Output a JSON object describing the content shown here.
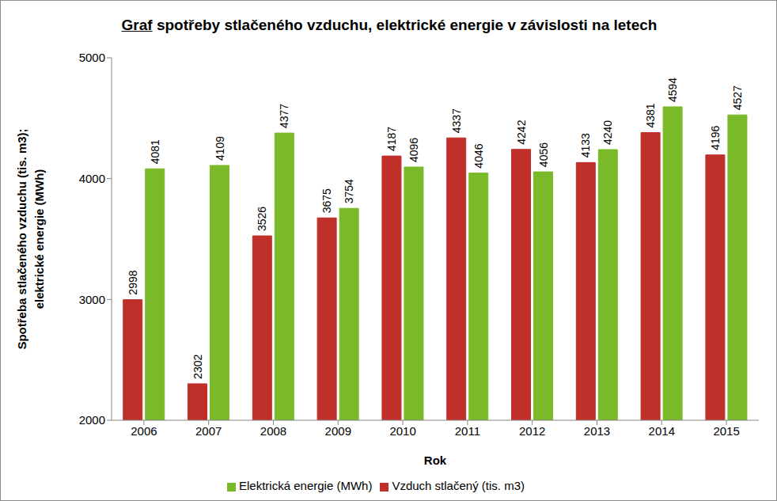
{
  "chart_data": {
    "type": "bar",
    "title": "Graf spotřeby stlačeného vzduchu, elektrické energie v závislosti na letech",
    "categories": [
      "2006",
      "2007",
      "2008",
      "2009",
      "2010",
      "2011",
      "2012",
      "2013",
      "2014",
      "2015"
    ],
    "series": [
      {
        "name": "Vzduch stlačený (tis. m3)",
        "color": "#c0302b",
        "values": [
          2998,
          2302,
          3526,
          3675,
          4187,
          4337,
          4242,
          4133,
          4381,
          4196
        ]
      },
      {
        "name": "Elektrická energie (MWh)",
        "color": "#7ab929",
        "values": [
          4081,
          4109,
          4377,
          3754,
          4096,
          4046,
          4056,
          4240,
          4594,
          4527
        ]
      }
    ],
    "x_label": "Rok",
    "y_label": "Spotřeba stlačeného vzduchu (tis. m3); elektrické energie (MWh)",
    "ylim": [
      2000,
      5000
    ],
    "yticks": [
      2000,
      3000,
      4000,
      5000
    ],
    "grid": false,
    "legend": "bottom",
    "data_labels": true
  }
}
